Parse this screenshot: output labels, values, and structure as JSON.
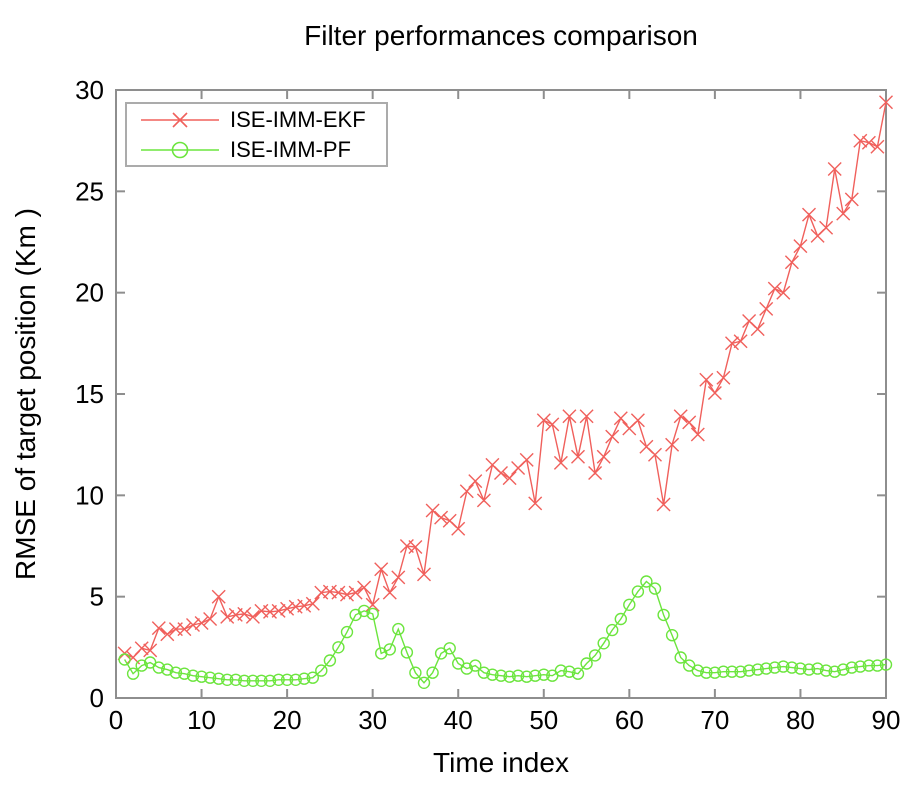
{
  "chart_data": {
    "type": "line",
    "title": "Filter performances comparison",
    "xlabel": "Time index",
    "ylabel": "RMSE of target position (Km )",
    "xlim": [
      0,
      90
    ],
    "ylim": [
      0,
      30
    ],
    "x_ticks": [
      0,
      10,
      20,
      30,
      40,
      50,
      60,
      70,
      80,
      90
    ],
    "y_ticks": [
      0,
      5,
      10,
      15,
      20,
      25,
      30
    ],
    "grid": false,
    "legend_position": "northwest",
    "axis_color": "#8e8e8e",
    "legend_border_color": "#ababab",
    "text_color": "#000000",
    "background_color": "#ffffff",
    "x": [
      1,
      2,
      3,
      4,
      5,
      6,
      7,
      8,
      9,
      10,
      11,
      12,
      13,
      14,
      15,
      16,
      17,
      18,
      19,
      20,
      21,
      22,
      23,
      24,
      25,
      26,
      27,
      28,
      29,
      30,
      31,
      32,
      33,
      34,
      35,
      36,
      37,
      38,
      39,
      40,
      41,
      42,
      43,
      44,
      45,
      46,
      47,
      48,
      49,
      50,
      51,
      52,
      53,
      54,
      55,
      56,
      57,
      58,
      59,
      60,
      61,
      62,
      63,
      64,
      65,
      66,
      67,
      68,
      69,
      70,
      71,
      72,
      73,
      74,
      75,
      76,
      77,
      78,
      79,
      80,
      81,
      82,
      83,
      84,
      85,
      86,
      87,
      88,
      89,
      90
    ],
    "series": [
      {
        "name": "ISE-IMM-EKF",
        "color": "#f0605c",
        "marker": "x",
        "values": [
          2.2,
          2.0,
          2.45,
          2.35,
          3.45,
          3.15,
          3.4,
          3.4,
          3.6,
          3.7,
          3.9,
          5.0,
          4.0,
          4.1,
          4.15,
          4.0,
          4.3,
          4.25,
          4.3,
          4.4,
          4.5,
          4.55,
          4.65,
          5.2,
          5.25,
          5.2,
          5.1,
          5.2,
          5.45,
          4.6,
          6.35,
          5.2,
          5.95,
          7.5,
          7.45,
          6.1,
          9.25,
          8.9,
          8.75,
          8.35,
          10.2,
          10.7,
          9.75,
          11.5,
          11.1,
          10.85,
          11.35,
          11.75,
          9.6,
          13.7,
          13.5,
          11.6,
          13.9,
          11.9,
          13.9,
          11.1,
          11.9,
          12.9,
          13.8,
          13.3,
          13.7,
          12.4,
          12.0,
          9.55,
          12.5,
          13.9,
          13.6,
          13.0,
          15.7,
          15.05,
          15.8,
          17.5,
          17.6,
          18.6,
          18.2,
          19.2,
          20.2,
          20.0,
          21.5,
          22.3,
          23.85,
          22.8,
          23.2,
          26.1,
          23.9,
          24.6,
          27.5,
          27.4,
          27.2,
          29.4
        ]
      },
      {
        "name": "ISE-IMM-PF",
        "color": "#6ce53e",
        "marker": "circle",
        "values": [
          1.9,
          1.2,
          1.6,
          1.75,
          1.5,
          1.4,
          1.25,
          1.2,
          1.1,
          1.05,
          1.0,
          0.95,
          0.9,
          0.9,
          0.85,
          0.85,
          0.85,
          0.85,
          0.9,
          0.9,
          0.9,
          0.95,
          1.0,
          1.35,
          1.85,
          2.5,
          3.25,
          4.1,
          4.3,
          4.15,
          2.2,
          2.4,
          3.4,
          2.25,
          1.25,
          0.75,
          1.25,
          2.2,
          2.45,
          1.7,
          1.45,
          1.6,
          1.25,
          1.15,
          1.1,
          1.05,
          1.1,
          1.05,
          1.1,
          1.15,
          1.1,
          1.35,
          1.3,
          1.2,
          1.7,
          2.1,
          2.7,
          3.35,
          3.9,
          4.6,
          5.25,
          5.75,
          5.4,
          4.1,
          3.1,
          2.0,
          1.6,
          1.35,
          1.25,
          1.25,
          1.3,
          1.3,
          1.3,
          1.35,
          1.4,
          1.45,
          1.5,
          1.55,
          1.5,
          1.45,
          1.4,
          1.45,
          1.35,
          1.3,
          1.4,
          1.5,
          1.55,
          1.6,
          1.6,
          1.65
        ]
      }
    ]
  }
}
